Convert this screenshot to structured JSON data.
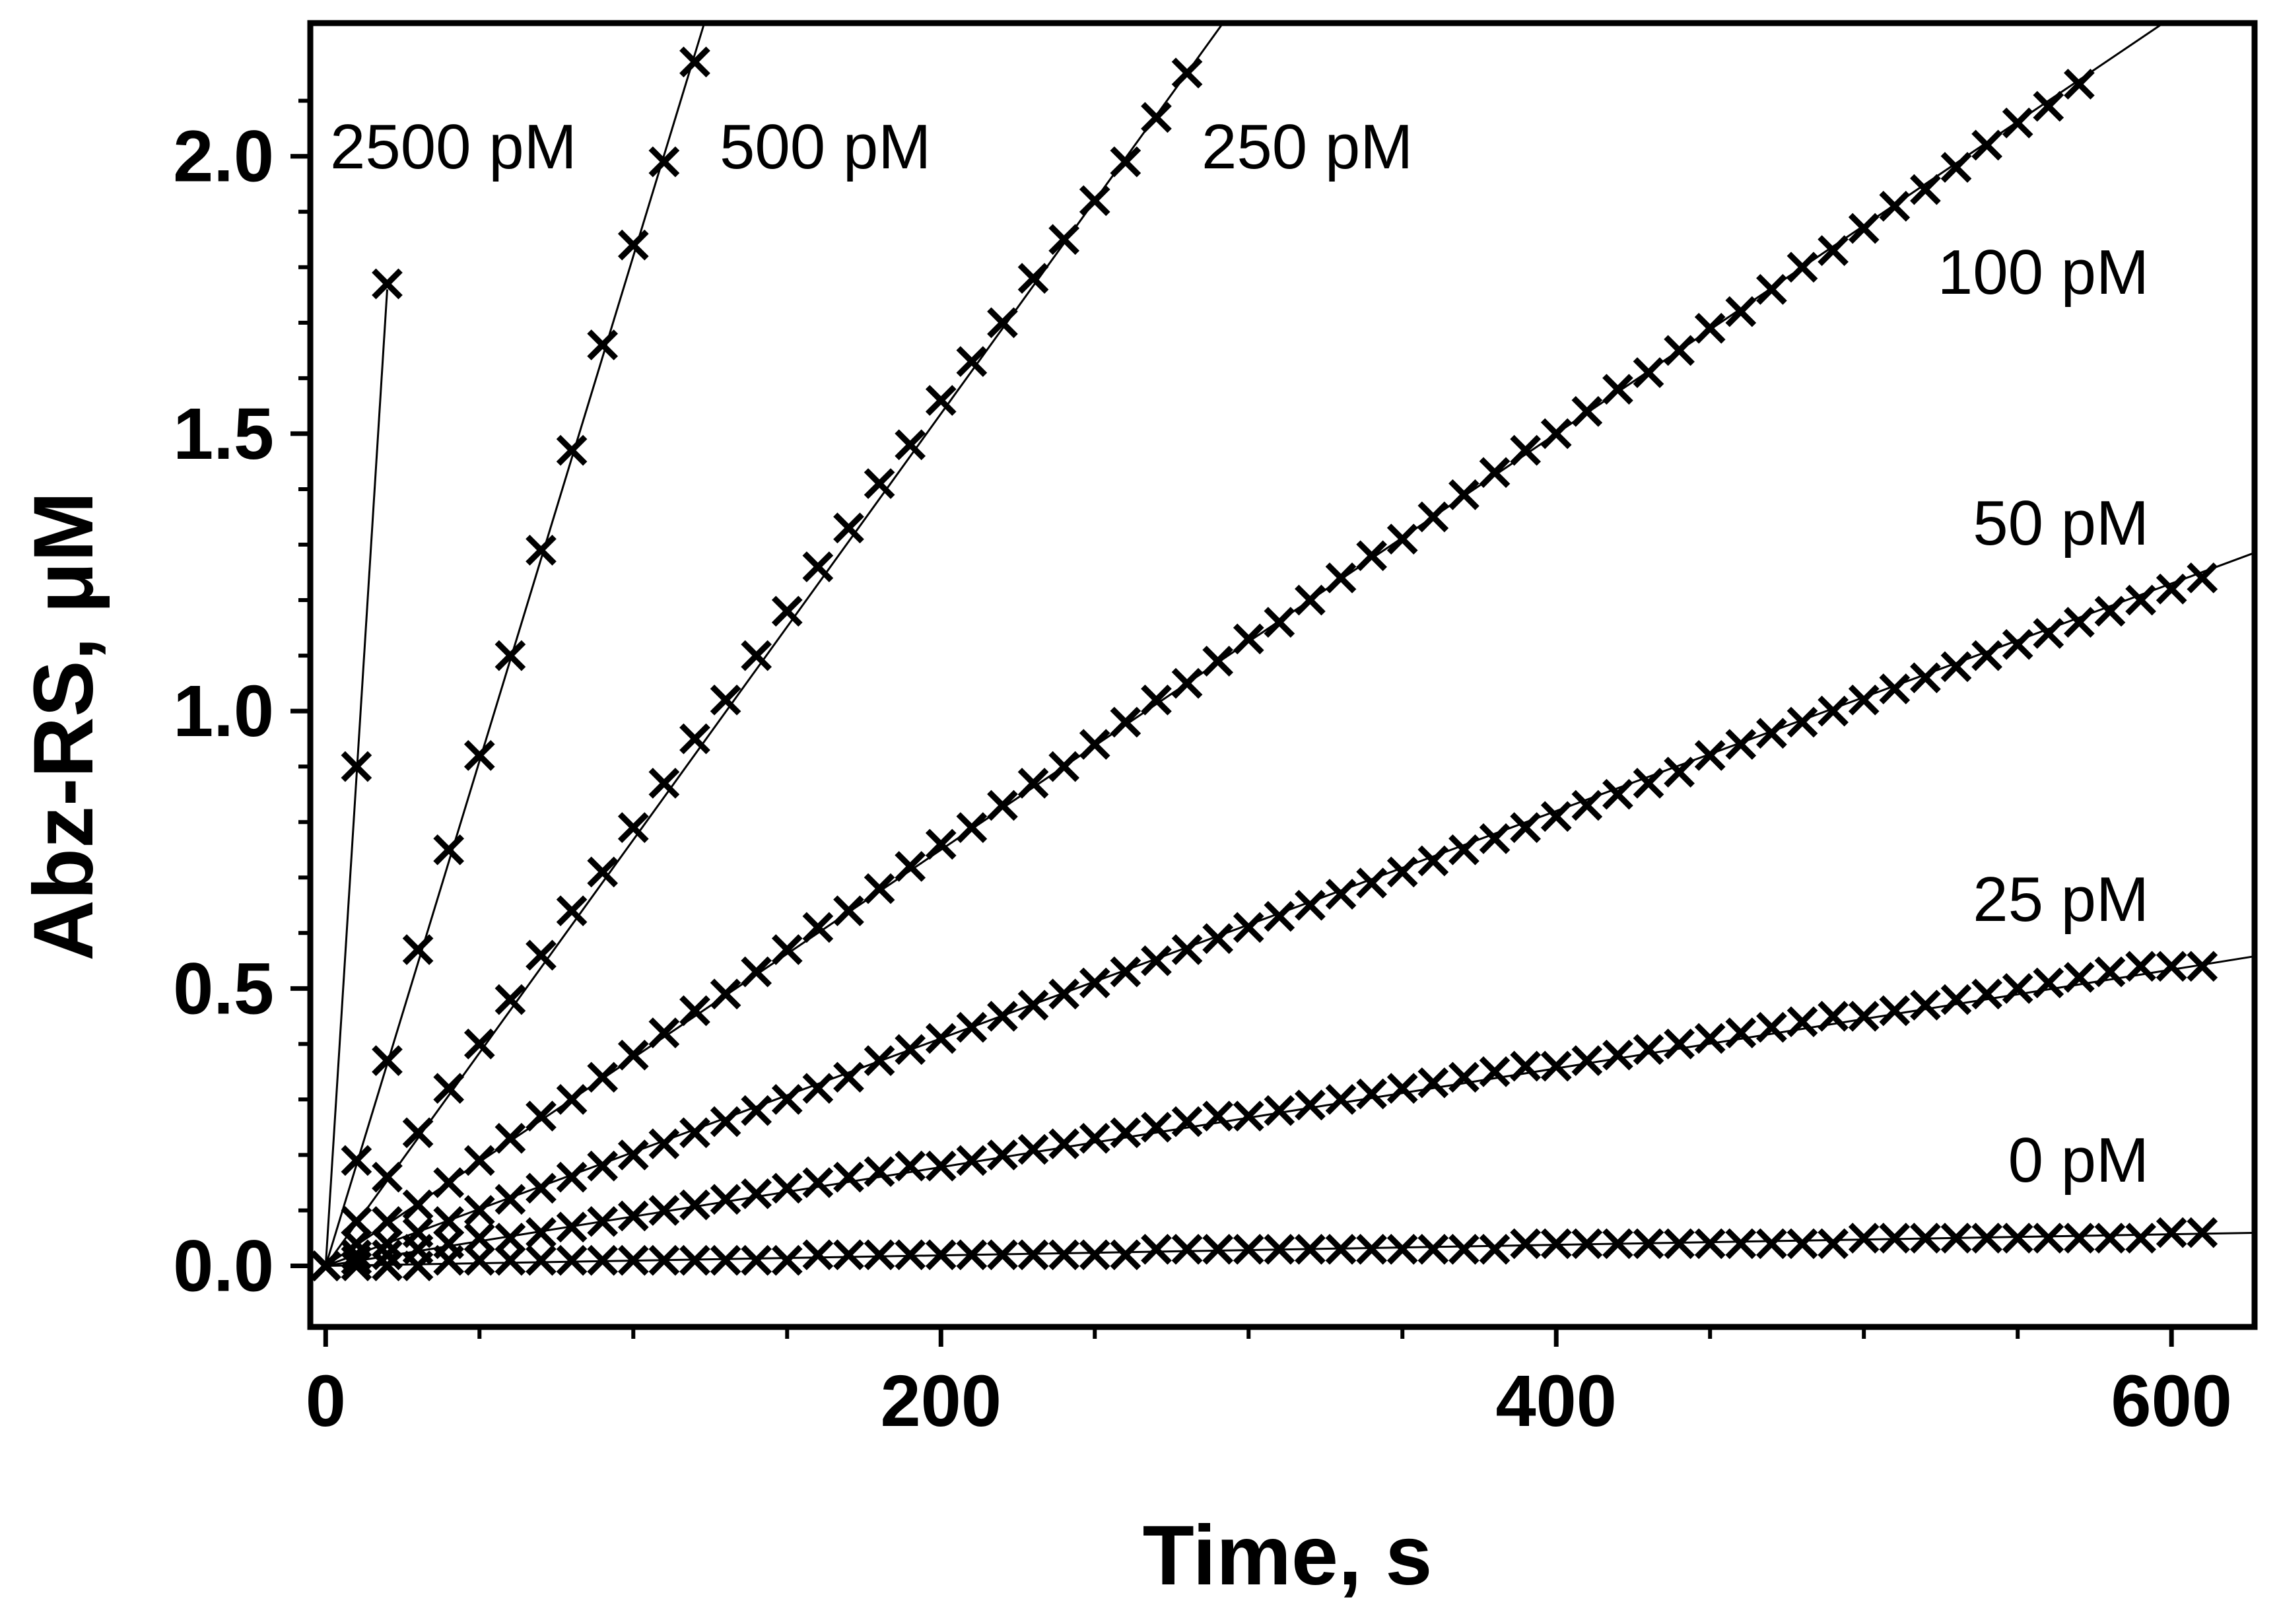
{
  "chart_data": {
    "type": "scatter",
    "xlabel": "Time, s",
    "ylabel": "Abz-RS, μM",
    "xlim": [
      -5,
      627
    ],
    "ylim": [
      -0.11,
      2.24
    ],
    "x_ticks": [
      0,
      200,
      400,
      600
    ],
    "x_tick_labels": [
      "0",
      "200",
      "400",
      "600"
    ],
    "y_ticks": [
      0.0,
      0.5,
      1.0,
      1.5,
      2.0
    ],
    "y_tick_labels": [
      "0.0",
      "0.5",
      "1.0",
      "1.5",
      "2.0"
    ],
    "marker": "x-cross",
    "fit_lines": true,
    "series": [
      {
        "name": "2500 pM",
        "x": [
          0,
          10,
          20
        ],
        "y": [
          0.0,
          0.9,
          1.77
        ],
        "fit_slope": 0.088,
        "fit_intercept": 0.0,
        "fit_x_range": [
          0,
          20
        ]
      },
      {
        "name": "500 pM",
        "x": [
          0,
          10,
          20,
          30,
          40,
          50,
          60,
          70,
          80,
          90,
          100,
          110,
          120
        ],
        "y": [
          0.0,
          0.19,
          0.37,
          0.57,
          0.75,
          0.92,
          1.1,
          1.29,
          1.47,
          1.66,
          1.84,
          1.99,
          2.17
        ],
        "fit_slope": 0.0182,
        "fit_intercept": 0.0,
        "fit_x_range": [
          0,
          124
        ]
      },
      {
        "name": "250 pM",
        "x": [
          0,
          10,
          20,
          30,
          40,
          50,
          60,
          70,
          80,
          90,
          100,
          110,
          120,
          130,
          140,
          150,
          160,
          170,
          180,
          190,
          200,
          210,
          220,
          230,
          240,
          250,
          260,
          270,
          280
        ],
        "y": [
          0.0,
          0.08,
          0.16,
          0.24,
          0.32,
          0.4,
          0.48,
          0.56,
          0.64,
          0.71,
          0.79,
          0.87,
          0.95,
          1.02,
          1.1,
          1.18,
          1.26,
          1.33,
          1.41,
          1.48,
          1.56,
          1.63,
          1.7,
          1.78,
          1.85,
          1.92,
          1.99,
          2.07,
          2.15
        ],
        "fit_slope": 0.00768,
        "fit_intercept": 0.0,
        "fit_x_range": [
          0,
          295
        ]
      },
      {
        "name": "100 pM",
        "x": [
          0,
          10,
          20,
          30,
          40,
          50,
          60,
          70,
          80,
          90,
          100,
          110,
          120,
          130,
          140,
          150,
          160,
          170,
          180,
          190,
          200,
          210,
          220,
          230,
          240,
          250,
          260,
          270,
          280,
          290,
          300,
          310,
          320,
          330,
          340,
          350,
          360,
          370,
          380,
          390,
          400,
          410,
          420,
          430,
          440,
          450,
          460,
          470,
          480,
          490,
          500,
          510,
          520,
          530,
          540,
          550,
          560,
          570
        ],
        "y": [
          0.0,
          0.04,
          0.08,
          0.11,
          0.15,
          0.19,
          0.23,
          0.27,
          0.3,
          0.34,
          0.38,
          0.42,
          0.46,
          0.49,
          0.53,
          0.57,
          0.61,
          0.64,
          0.68,
          0.72,
          0.76,
          0.79,
          0.83,
          0.87,
          0.9,
          0.94,
          0.98,
          1.02,
          1.05,
          1.09,
          1.13,
          1.16,
          1.2,
          1.24,
          1.28,
          1.31,
          1.35,
          1.39,
          1.43,
          1.47,
          1.5,
          1.54,
          1.58,
          1.61,
          1.65,
          1.69,
          1.72,
          1.76,
          1.8,
          1.83,
          1.87,
          1.91,
          1.94,
          1.98,
          2.02,
          2.06,
          2.09,
          2.13
        ],
        "fit_slope": 0.00375,
        "fit_intercept": 0.0,
        "fit_x_range": [
          0,
          627
        ]
      },
      {
        "name": "50 pM",
        "x": [
          0,
          10,
          20,
          30,
          40,
          50,
          60,
          70,
          80,
          90,
          100,
          110,
          120,
          130,
          140,
          150,
          160,
          170,
          180,
          190,
          200,
          210,
          220,
          230,
          240,
          250,
          260,
          270,
          280,
          290,
          300,
          310,
          320,
          330,
          340,
          350,
          360,
          370,
          380,
          390,
          400,
          410,
          420,
          430,
          440,
          450,
          460,
          470,
          480,
          490,
          500,
          510,
          520,
          530,
          540,
          550,
          560,
          570,
          580,
          590,
          600,
          610
        ],
        "y": [
          0.0,
          0.02,
          0.04,
          0.06,
          0.08,
          0.1,
          0.12,
          0.14,
          0.16,
          0.18,
          0.2,
          0.22,
          0.24,
          0.26,
          0.28,
          0.3,
          0.32,
          0.34,
          0.37,
          0.39,
          0.41,
          0.43,
          0.45,
          0.47,
          0.49,
          0.51,
          0.53,
          0.55,
          0.57,
          0.59,
          0.61,
          0.63,
          0.65,
          0.67,
          0.69,
          0.71,
          0.73,
          0.75,
          0.77,
          0.79,
          0.81,
          0.83,
          0.85,
          0.87,
          0.89,
          0.92,
          0.94,
          0.96,
          0.98,
          1.0,
          1.02,
          1.04,
          1.06,
          1.08,
          1.1,
          1.12,
          1.14,
          1.16,
          1.18,
          1.2,
          1.22,
          1.24
        ],
        "fit_slope": 0.00205,
        "fit_intercept": 0.0,
        "fit_x_range": [
          0,
          627
        ]
      },
      {
        "name": "25 pM",
        "x": [
          0,
          10,
          20,
          30,
          40,
          50,
          60,
          70,
          80,
          90,
          100,
          110,
          120,
          130,
          140,
          150,
          160,
          170,
          180,
          190,
          200,
          210,
          220,
          230,
          240,
          250,
          260,
          270,
          280,
          290,
          300,
          310,
          320,
          330,
          340,
          350,
          360,
          370,
          380,
          390,
          400,
          410,
          420,
          430,
          440,
          450,
          460,
          470,
          480,
          490,
          500,
          510,
          520,
          530,
          540,
          550,
          560,
          570,
          580,
          590,
          600,
          610
        ],
        "y": [
          0.0,
          0.01,
          0.02,
          0.03,
          0.04,
          0.05,
          0.05,
          0.06,
          0.07,
          0.08,
          0.09,
          0.1,
          0.11,
          0.12,
          0.13,
          0.14,
          0.15,
          0.16,
          0.17,
          0.18,
          0.18,
          0.19,
          0.2,
          0.21,
          0.22,
          0.23,
          0.24,
          0.25,
          0.26,
          0.27,
          0.27,
          0.28,
          0.29,
          0.3,
          0.31,
          0.32,
          0.33,
          0.34,
          0.35,
          0.36,
          0.36,
          0.37,
          0.38,
          0.39,
          0.4,
          0.41,
          0.42,
          0.43,
          0.44,
          0.45,
          0.45,
          0.46,
          0.47,
          0.48,
          0.49,
          0.5,
          0.51,
          0.52,
          0.53,
          0.54,
          0.54,
          0.54
        ],
        "fit_slope": 0.00089,
        "fit_intercept": 0.0,
        "fit_x_range": [
          0,
          627
        ]
      },
      {
        "name": "0 pM",
        "x": [
          0,
          10,
          20,
          30,
          40,
          50,
          60,
          70,
          80,
          90,
          100,
          110,
          120,
          130,
          140,
          150,
          160,
          170,
          180,
          190,
          200,
          210,
          220,
          230,
          240,
          250,
          260,
          270,
          280,
          290,
          300,
          310,
          320,
          330,
          340,
          350,
          360,
          370,
          380,
          390,
          400,
          410,
          420,
          430,
          440,
          450,
          460,
          470,
          480,
          490,
          500,
          510,
          520,
          530,
          540,
          550,
          560,
          570,
          580,
          590,
          600,
          610
        ],
        "y": [
          0.0,
          0.0,
          0.0,
          0.0,
          0.01,
          0.01,
          0.01,
          0.01,
          0.01,
          0.01,
          0.01,
          0.01,
          0.01,
          0.01,
          0.01,
          0.01,
          0.02,
          0.02,
          0.02,
          0.02,
          0.02,
          0.02,
          0.02,
          0.02,
          0.02,
          0.02,
          0.02,
          0.03,
          0.03,
          0.03,
          0.03,
          0.03,
          0.03,
          0.03,
          0.03,
          0.03,
          0.03,
          0.03,
          0.03,
          0.04,
          0.04,
          0.04,
          0.04,
          0.04,
          0.04,
          0.04,
          0.04,
          0.04,
          0.04,
          0.04,
          0.05,
          0.05,
          0.05,
          0.05,
          0.05,
          0.05,
          0.05,
          0.05,
          0.05,
          0.05,
          0.06,
          0.06
        ],
        "fit_slope": 9.5e-05,
        "fit_intercept": 0.0,
        "fit_x_range": [
          0,
          627
        ]
      }
    ]
  }
}
